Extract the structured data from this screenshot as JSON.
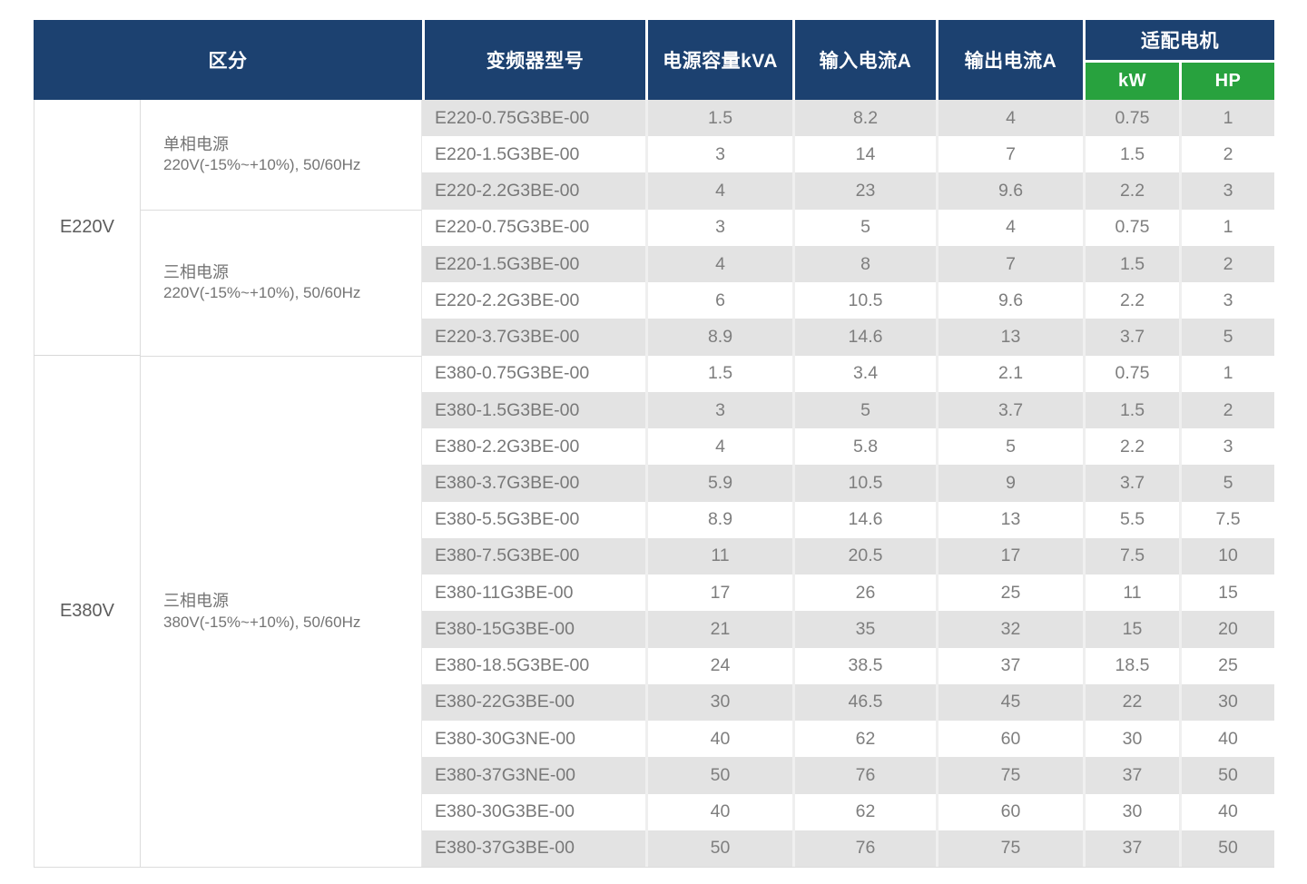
{
  "table": {
    "header": {
      "col_category": "区分",
      "col_model": "变频器型号",
      "col_capacity": "电源容量kVA",
      "col_input_current": "输入电流A",
      "col_output_current": "输出电流A",
      "col_motor_group": "适配电机",
      "col_motor_kw": "kW",
      "col_motor_hp": "HP"
    },
    "colors": {
      "header_bg": "#1c4170",
      "motor_sub_bg": "#28a23e",
      "stripe_bg": "#e3e3e3"
    },
    "groups": [
      {
        "label": "E220V",
        "sections": [
          {
            "power_type": "单相电源",
            "power_spec": "220V(-15%~+10%), 50/60Hz",
            "rows": [
              {
                "model": "E220-0.75G3BE-00",
                "kva": "1.5",
                "input_a": "8.2",
                "output_a": "4",
                "kw": "0.75",
                "hp": "1"
              },
              {
                "model": "E220-1.5G3BE-00",
                "kva": "3",
                "input_a": "14",
                "output_a": "7",
                "kw": "1.5",
                "hp": "2"
              },
              {
                "model": "E220-2.2G3BE-00",
                "kva": "4",
                "input_a": "23",
                "output_a": "9.6",
                "kw": "2.2",
                "hp": "3"
              }
            ]
          },
          {
            "power_type": "三相电源",
            "power_spec": "220V(-15%~+10%), 50/60Hz",
            "rows": [
              {
                "model": "E220-0.75G3BE-00",
                "kva": "3",
                "input_a": "5",
                "output_a": "4",
                "kw": "0.75",
                "hp": "1"
              },
              {
                "model": "E220-1.5G3BE-00",
                "kva": "4",
                "input_a": "8",
                "output_a": "7",
                "kw": "1.5",
                "hp": "2"
              },
              {
                "model": "E220-2.2G3BE-00",
                "kva": "6",
                "input_a": "10.5",
                "output_a": "9.6",
                "kw": "2.2",
                "hp": "3"
              },
              {
                "model": "E220-3.7G3BE-00",
                "kva": "8.9",
                "input_a": "14.6",
                "output_a": "13",
                "kw": "3.7",
                "hp": "5"
              }
            ]
          }
        ]
      },
      {
        "label": "E380V",
        "sections": [
          {
            "power_type": "三相电源",
            "power_spec": "380V(-15%~+10%), 50/60Hz",
            "rows": [
              {
                "model": "E380-0.75G3BE-00",
                "kva": "1.5",
                "input_a": "3.4",
                "output_a": "2.1",
                "kw": "0.75",
                "hp": "1"
              },
              {
                "model": "E380-1.5G3BE-00",
                "kva": "3",
                "input_a": "5",
                "output_a": "3.7",
                "kw": "1.5",
                "hp": "2"
              },
              {
                "model": "E380-2.2G3BE-00",
                "kva": "4",
                "input_a": "5.8",
                "output_a": "5",
                "kw": "2.2",
                "hp": "3"
              },
              {
                "model": "E380-3.7G3BE-00",
                "kva": "5.9",
                "input_a": "10.5",
                "output_a": "9",
                "kw": "3.7",
                "hp": "5"
              },
              {
                "model": "E380-5.5G3BE-00",
                "kva": "8.9",
                "input_a": "14.6",
                "output_a": "13",
                "kw": "5.5",
                "hp": "7.5"
              },
              {
                "model": "E380-7.5G3BE-00",
                "kva": "11",
                "input_a": "20.5",
                "output_a": "17",
                "kw": "7.5",
                "hp": "10"
              },
              {
                "model": "E380-11G3BE-00",
                "kva": "17",
                "input_a": "26",
                "output_a": "25",
                "kw": "11",
                "hp": "15"
              },
              {
                "model": "E380-15G3BE-00",
                "kva": "21",
                "input_a": "35",
                "output_a": "32",
                "kw": "15",
                "hp": "20"
              },
              {
                "model": "E380-18.5G3BE-00",
                "kva": "24",
                "input_a": "38.5",
                "output_a": "37",
                "kw": "18.5",
                "hp": "25"
              },
              {
                "model": "E380-22G3BE-00",
                "kva": "30",
                "input_a": "46.5",
                "output_a": "45",
                "kw": "22",
                "hp": "30"
              },
              {
                "model": "E380-30G3NE-00",
                "kva": "40",
                "input_a": "62",
                "output_a": "60",
                "kw": "30",
                "hp": "40"
              },
              {
                "model": "E380-37G3NE-00",
                "kva": "50",
                "input_a": "76",
                "output_a": "75",
                "kw": "37",
                "hp": "50"
              },
              {
                "model": "E380-30G3BE-00",
                "kva": "40",
                "input_a": "62",
                "output_a": "60",
                "kw": "30",
                "hp": "40"
              },
              {
                "model": "E380-37G3BE-00",
                "kva": "50",
                "input_a": "76",
                "output_a": "75",
                "kw": "37",
                "hp": "50"
              }
            ]
          }
        ]
      }
    ]
  }
}
